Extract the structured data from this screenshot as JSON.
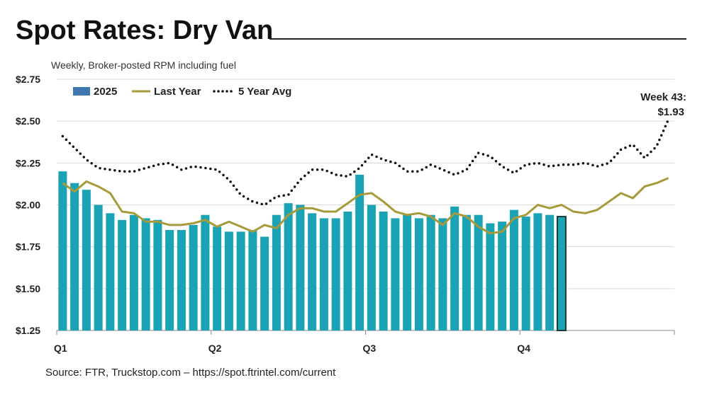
{
  "title": "Spot Rates: Dry Van",
  "subtitle": "Weekly, Broker-posted RPM including fuel",
  "source": "Source: FTR, Truckstop.com – https://spot.ftrintel.com/current",
  "chart_data": {
    "type": "bar",
    "title": "Spot Rates: Dry Van",
    "ylim": [
      1.25,
      2.75
    ],
    "y_ticks": [
      "$1.25",
      "$1.50",
      "$1.75",
      "$2.00",
      "$2.25",
      "$2.50",
      "$2.75"
    ],
    "x_ticks": [
      "Q1",
      "Q2",
      "Q3",
      "Q4"
    ],
    "grid": true,
    "legend": "top-left",
    "annotation": {
      "line1": "Week 43:",
      "line2": "$1.93"
    },
    "colors": {
      "bars": "#1aa3b5",
      "last_year": "#a69a3a",
      "avg": "#111111"
    },
    "series": [
      {
        "name": "2025",
        "type": "bar",
        "values": [
          2.2,
          2.13,
          2.09,
          2.0,
          1.95,
          1.91,
          1.94,
          1.92,
          1.91,
          1.85,
          1.85,
          1.88,
          1.94,
          1.87,
          1.84,
          1.84,
          1.85,
          1.81,
          1.94,
          2.01,
          2.0,
          1.95,
          1.92,
          1.92,
          1.96,
          2.18,
          2.0,
          1.96,
          1.92,
          1.94,
          1.92,
          1.94,
          1.92,
          1.99,
          1.94,
          1.94,
          1.89,
          1.9,
          1.97,
          1.93,
          1.95,
          1.94,
          1.93
        ]
      },
      {
        "name": "Last Year",
        "type": "line",
        "values": [
          2.13,
          2.08,
          2.14,
          2.11,
          2.07,
          1.96,
          1.95,
          1.9,
          1.9,
          1.88,
          1.88,
          1.89,
          1.91,
          1.87,
          1.9,
          1.87,
          1.84,
          1.88,
          1.86,
          1.94,
          1.98,
          1.98,
          1.96,
          1.96,
          2.01,
          2.06,
          2.07,
          2.02,
          1.96,
          1.94,
          1.95,
          1.93,
          1.88,
          1.95,
          1.93,
          1.87,
          1.83,
          1.84,
          1.92,
          1.94,
          2.0,
          1.98,
          2.0,
          1.96,
          1.95,
          1.97,
          2.02,
          2.07,
          2.04,
          2.11,
          2.13,
          2.16
        ]
      },
      {
        "name": "5 Year Avg",
        "type": "line",
        "values": [
          2.41,
          2.34,
          2.27,
          2.22,
          2.21,
          2.2,
          2.2,
          2.22,
          2.24,
          2.25,
          2.21,
          2.23,
          2.22,
          2.21,
          2.15,
          2.06,
          2.02,
          2.0,
          2.05,
          2.06,
          2.15,
          2.21,
          2.21,
          2.18,
          2.17,
          2.22,
          2.3,
          2.27,
          2.25,
          2.2,
          2.2,
          2.24,
          2.21,
          2.18,
          2.21,
          2.31,
          2.29,
          2.23,
          2.19,
          2.24,
          2.25,
          2.23,
          2.24,
          2.24,
          2.25,
          2.23,
          2.25,
          2.33,
          2.36,
          2.28,
          2.35,
          2.51
        ]
      }
    ]
  }
}
